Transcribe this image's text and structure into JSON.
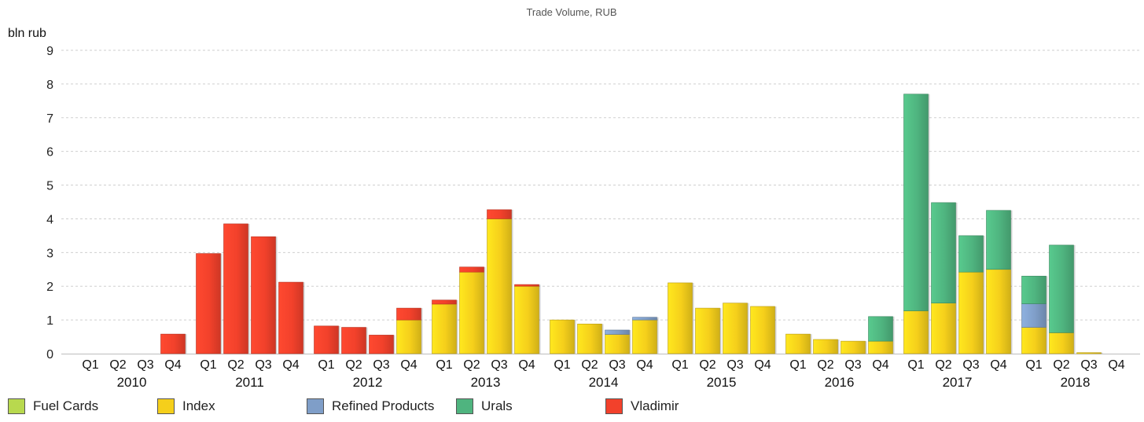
{
  "chart_data": {
    "type": "bar",
    "stacked": true,
    "title": "Trade Volume, RUB",
    "ylabel": "bln rub",
    "xlabel": "",
    "ylim": [
      0,
      9
    ],
    "yticks": [
      0,
      1,
      2,
      3,
      4,
      5,
      6,
      7,
      8,
      9
    ],
    "grid": true,
    "legend_position": "bottom",
    "years": [
      "2010",
      "2011",
      "2012",
      "2013",
      "2014",
      "2015",
      "2016",
      "2017",
      "2018"
    ],
    "quarters": [
      "Q1",
      "Q2",
      "Q3",
      "Q4"
    ],
    "series": [
      {
        "name": "Fuel Cards",
        "color": "#b8d94e",
        "values": [
          0,
          0,
          0,
          0,
          0,
          0,
          0,
          0,
          0,
          0,
          0,
          0,
          0,
          0,
          0,
          0,
          0,
          0,
          0,
          0,
          0,
          0,
          0,
          0,
          0,
          0,
          0,
          0,
          0,
          0,
          0,
          0,
          0,
          0,
          0,
          0
        ]
      },
      {
        "name": "Index",
        "color": "#f5cf1b",
        "values": [
          0,
          0,
          0,
          0,
          0,
          0,
          0,
          0,
          0,
          0,
          0,
          1.0,
          1.47,
          2.42,
          4.0,
          2.0,
          1.0,
          0.88,
          0.57,
          1.0,
          2.1,
          1.35,
          1.5,
          1.4,
          0.58,
          0.42,
          0.37,
          0.37,
          1.27,
          1.5,
          2.42,
          2.5,
          0.78,
          0.62,
          0.03,
          0
        ]
      },
      {
        "name": "Refined Products",
        "color": "#7f9ec8",
        "values": [
          0,
          0,
          0,
          0,
          0,
          0,
          0,
          0,
          0,
          0,
          0,
          0,
          0,
          0,
          0,
          0,
          0,
          0,
          0.13,
          0.08,
          0,
          0,
          0,
          0,
          0,
          0,
          0,
          0,
          0,
          0,
          0,
          0,
          0.7,
          0,
          0,
          0
        ]
      },
      {
        "name": "Urals",
        "color": "#4fb47f",
        "values": [
          0,
          0,
          0,
          0,
          0,
          0,
          0,
          0,
          0,
          0,
          0,
          0,
          0,
          0,
          0,
          0,
          0,
          0,
          0,
          0,
          0,
          0,
          0,
          0,
          0,
          0,
          0,
          0.73,
          6.43,
          2.98,
          1.08,
          1.75,
          0.82,
          2.6,
          0,
          0
        ]
      },
      {
        "name": "Vladimir",
        "color": "#f2412b",
        "values": [
          0,
          0,
          0,
          0.58,
          2.97,
          3.85,
          3.47,
          2.12,
          0.82,
          0.78,
          0.55,
          0.35,
          0.12,
          0.15,
          0.27,
          0.05,
          0,
          0,
          0,
          0,
          0,
          0,
          0,
          0,
          0,
          0,
          0,
          0,
          0,
          0,
          0,
          0,
          0,
          0,
          0,
          0
        ]
      }
    ]
  }
}
